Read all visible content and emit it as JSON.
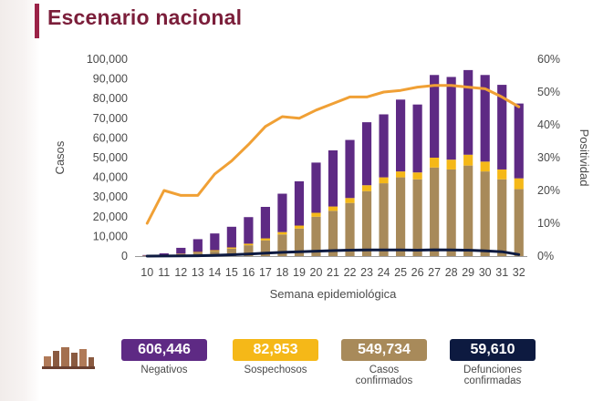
{
  "title": "Escenario nacional",
  "colors": {
    "negativos": "#5e2a84",
    "sospechosos": "#f5b818",
    "confirmados": "#a88a5a",
    "defunciones": "#0d1a40",
    "positividad": "#f0a035",
    "title": "#7b1e3a"
  },
  "chart_data": {
    "type": "bar",
    "stacked": true,
    "xlabel": "Semana epidemiológica",
    "ylabel": "Casos",
    "y2label": "Positividad",
    "categories": [
      "10",
      "11",
      "12",
      "13",
      "14",
      "15",
      "16",
      "17",
      "18",
      "19",
      "20",
      "21",
      "22",
      "23",
      "24",
      "25",
      "26",
      "27",
      "28",
      "29",
      "30",
      "31",
      "32"
    ],
    "ylim": [
      0,
      100000
    ],
    "yticks": [
      "0",
      "10,000",
      "20,000",
      "30,000",
      "40,000",
      "50,000",
      "60,000",
      "70,000",
      "80,000",
      "90,000",
      "100,000"
    ],
    "y2lim": [
      0,
      60
    ],
    "y2ticks": [
      "0%",
      "10%",
      "20%",
      "30%",
      "40%",
      "50%",
      "60%"
    ],
    "grid": false,
    "series": [
      {
        "name": "Casos confirmados",
        "axis": "left",
        "kind": "bar",
        "values": [
          200,
          500,
          1000,
          1800,
          2600,
          3800,
          5500,
          8000,
          11000,
          14000,
          20000,
          23000,
          27000,
          33000,
          37000,
          40000,
          39000,
          45000,
          44000,
          46000,
          43000,
          39000,
          34000
        ]
      },
      {
        "name": "Sospechosos",
        "axis": "left",
        "kind": "bar",
        "values": [
          50,
          100,
          200,
          300,
          400,
          600,
          800,
          1000,
          1200,
          1500,
          2000,
          2200,
          2500,
          3000,
          3000,
          3000,
          3500,
          5000,
          5000,
          5500,
          5000,
          5000,
          5500
        ]
      },
      {
        "name": "Negativos",
        "axis": "left",
        "kind": "bar",
        "values": [
          300,
          800,
          3000,
          6500,
          8500,
          10500,
          13500,
          16000,
          19500,
          22500,
          25500,
          28500,
          29500,
          32000,
          32000,
          36500,
          34500,
          42000,
          42000,
          43000,
          44000,
          43000,
          38000
        ]
      },
      {
        "name": "Defunciones",
        "axis": "left",
        "kind": "line",
        "values": [
          0,
          50,
          100,
          200,
          400,
          700,
          1000,
          1500,
          1900,
          2200,
          2500,
          2800,
          3000,
          3100,
          3100,
          3100,
          3000,
          3200,
          3100,
          3000,
          2700,
          2200,
          800
        ]
      },
      {
        "name": "Positividad",
        "axis": "right",
        "kind": "line",
        "values": [
          10,
          20,
          18.5,
          18.5,
          25,
          29,
          34,
          39.5,
          42.5,
          42,
          44.5,
          46.5,
          48.5,
          48.5,
          50,
          50.5,
          51.5,
          52,
          52,
          51.5,
          51,
          48.5,
          45.5
        ]
      }
    ]
  },
  "summary": [
    {
      "value": "606,446",
      "label": "Negativos",
      "label2": "",
      "color": "#5e2a84"
    },
    {
      "value": "82,953",
      "label": "Sospechosos",
      "label2": "",
      "color": "#f5b818"
    },
    {
      "value": "549,734",
      "label": "Casos",
      "label2": "confirmados",
      "color": "#a88a5a"
    },
    {
      "value": "59,610",
      "label": "Defunciones",
      "label2": "confirmadas",
      "color": "#0d1a40"
    }
  ]
}
